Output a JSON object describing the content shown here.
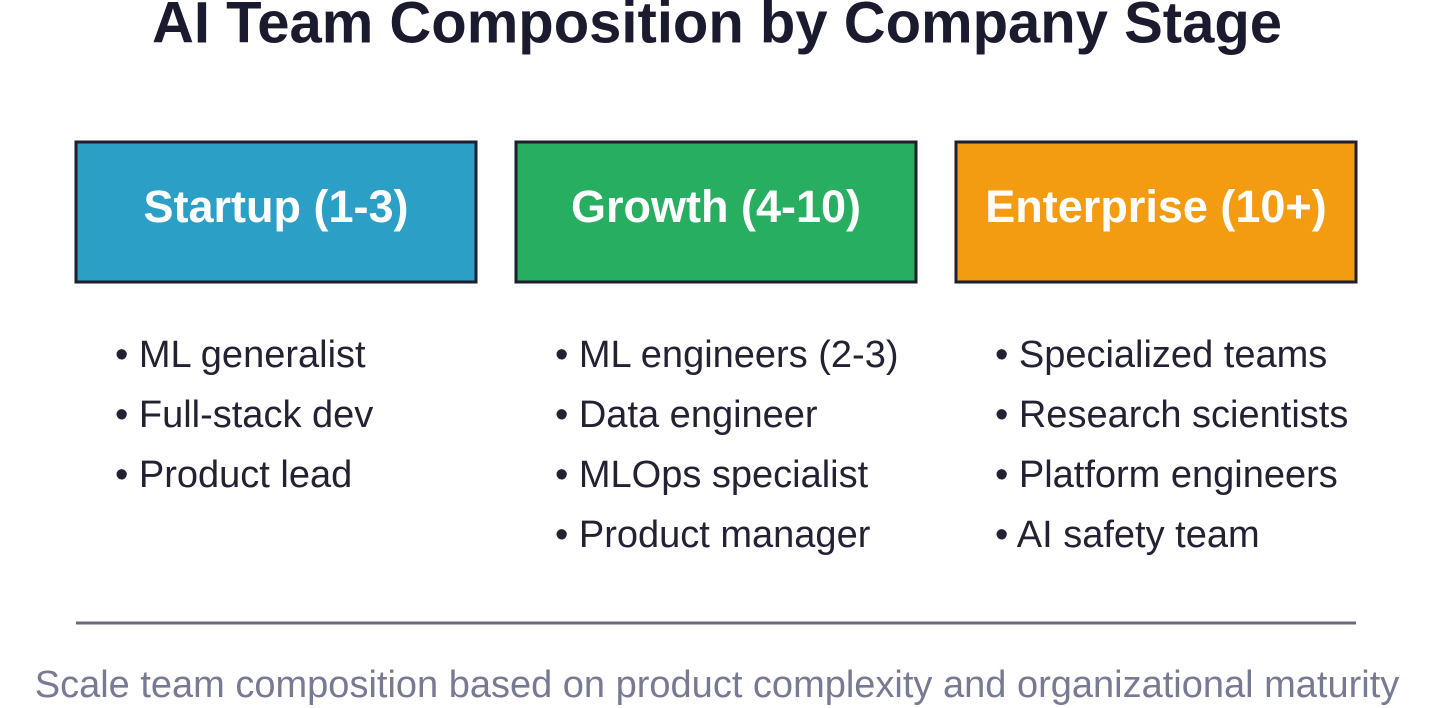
{
  "title": "AI Team Composition by Company Stage",
  "stages": [
    {
      "label": "Startup (1-3)",
      "items": [
        "• ML generalist",
        "• Full-stack dev",
        "• Product lead"
      ]
    },
    {
      "label": "Growth (4-10)",
      "items": [
        "• ML engineers (2-3)",
        "• Data engineer",
        "• MLOps specialist",
        "• Product manager"
      ]
    },
    {
      "label": "Enterprise (10+)",
      "items": [
        "• Specialized teams",
        "• Research scientists",
        "• Platform engineers",
        "• AI safety team"
      ]
    }
  ],
  "footer": "Scale team composition based on product complexity and organizational maturity"
}
